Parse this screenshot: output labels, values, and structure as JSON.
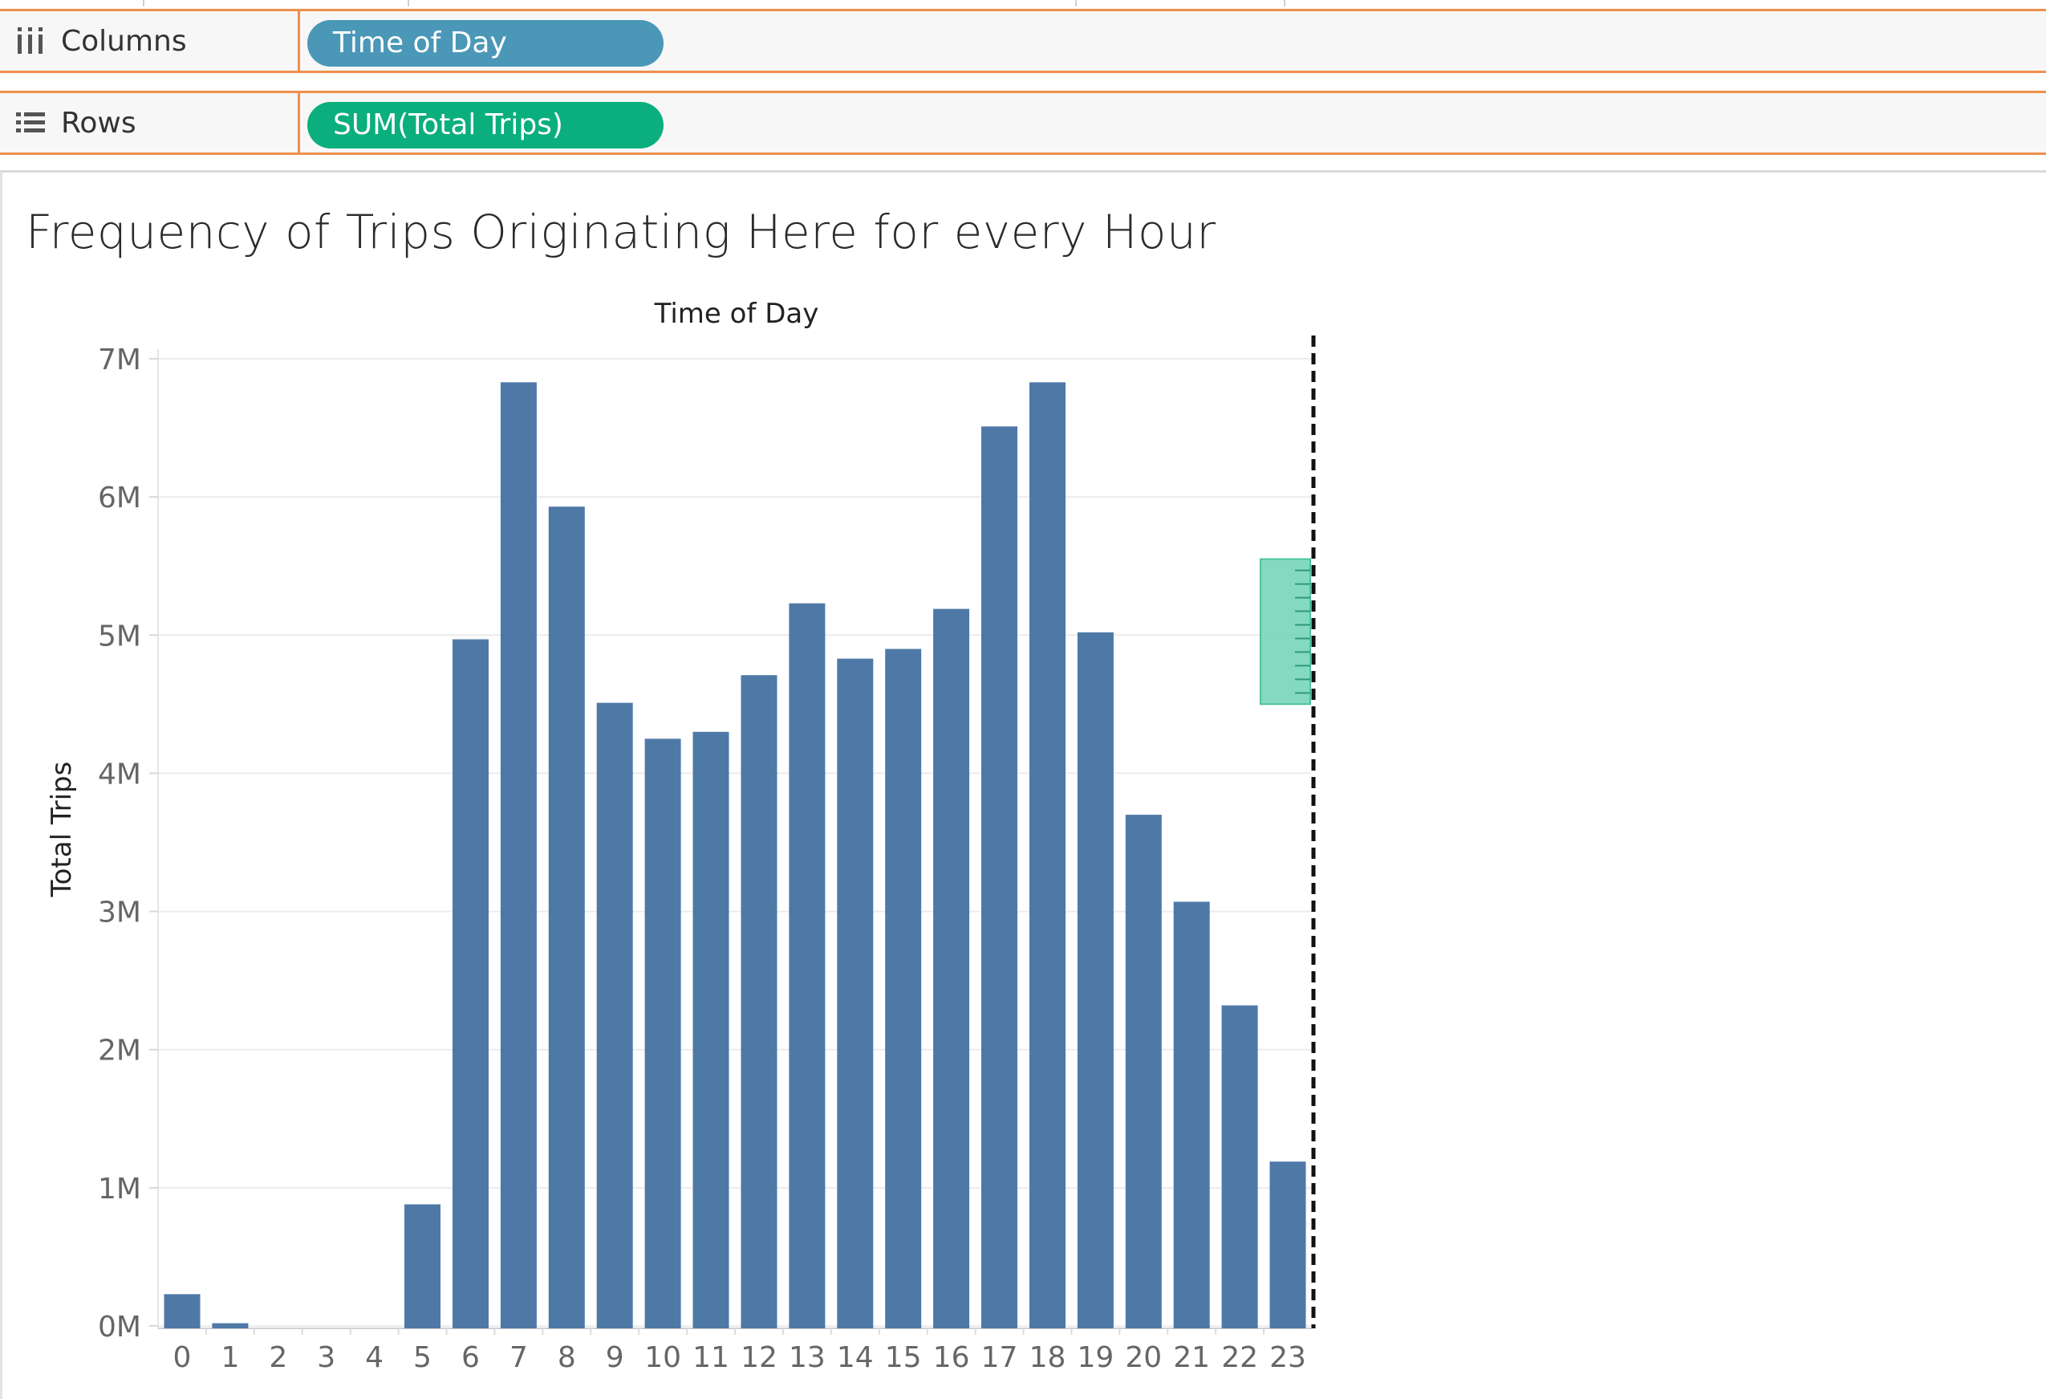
{
  "shelves": {
    "columns": {
      "label": "Columns",
      "pill": "Time of Day",
      "icon": "columns-shelf-icon"
    },
    "rows": {
      "label": "Rows",
      "pill": "SUM(Total Trips)",
      "icon": "rows-shelf-icon"
    }
  },
  "colors": {
    "bar": "#4e79a7",
    "dimension_pill": "#4b97b8",
    "measure_pill": "#0bae7d",
    "shelf_border": "#ef8f4c",
    "drop_indicator": "#6fd3b5",
    "gridline": "#ececec"
  },
  "chart_data": {
    "type": "bar",
    "title": "Frequency of Trips Originating Here for every Hour",
    "xlabel": "Time of Day",
    "ylabel": "Total Trips",
    "categories": [
      "0",
      "1",
      "2",
      "3",
      "4",
      "5",
      "6",
      "7",
      "8",
      "9",
      "10",
      "11",
      "12",
      "13",
      "14",
      "15",
      "16",
      "17",
      "18",
      "19",
      "20",
      "21",
      "22",
      "23"
    ],
    "values": [
      230000,
      20000,
      0,
      0,
      0,
      880000,
      4970000,
      6830000,
      5930000,
      4510000,
      4250000,
      4300000,
      4710000,
      5230000,
      4830000,
      4900000,
      5190000,
      6510000,
      6830000,
      5020000,
      3700000,
      3070000,
      2320000,
      1190000
    ],
    "yticks": [
      {
        "value": 0,
        "label": "0M"
      },
      {
        "value": 1000000,
        "label": "1M"
      },
      {
        "value": 2000000,
        "label": "2M"
      },
      {
        "value": 3000000,
        "label": "3M"
      },
      {
        "value": 4000000,
        "label": "4M"
      },
      {
        "value": 5000000,
        "label": "5M"
      },
      {
        "value": 6000000,
        "label": "6M"
      },
      {
        "value": 7000000,
        "label": "7M"
      }
    ],
    "ylim": [
      0,
      7000000
    ],
    "grid": true,
    "drop_indicator": {
      "after_category": "23",
      "range": [
        4500000,
        5550000
      ]
    }
  }
}
